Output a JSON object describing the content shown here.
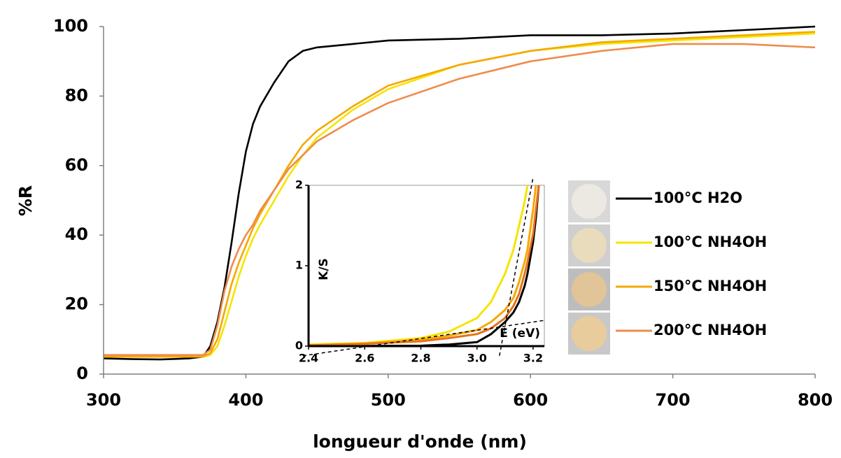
{
  "chart_data": [
    {
      "type": "line",
      "xlabel": "longueur d'onde (nm)",
      "ylabel": "%R",
      "x": [
        300,
        320,
        340,
        360,
        370,
        375,
        380,
        385,
        390,
        395,
        400,
        405,
        410,
        420,
        430,
        440,
        450,
        475,
        500,
        550,
        600,
        650,
        700,
        750,
        800
      ],
      "series": [
        {
          "name": "100°C H2O",
          "color": "#000000",
          "values": [
            4.5,
            4.3,
            4.2,
            4.5,
            5,
            8,
            15,
            25,
            38,
            52,
            64,
            72,
            77,
            84,
            90,
            93,
            94,
            95,
            96,
            96.5,
            97.5,
            97.5,
            98,
            99,
            100
          ]
        },
        {
          "name": "100°C NH4OH",
          "color": "#f5e400",
          "values": [
            5,
            5,
            5,
            5,
            5,
            5.5,
            8,
            14,
            21,
            28,
            34,
            39,
            43,
            50,
            57,
            63,
            68,
            76,
            82,
            89,
            93,
            95,
            96,
            97,
            98
          ]
        },
        {
          "name": "150°C NH4OH",
          "color": "#f5a800",
          "values": [
            5,
            5,
            5,
            5,
            5,
            6,
            10,
            18,
            26,
            32,
            37,
            42,
            46,
            53,
            60,
            66,
            70,
            77,
            83,
            89,
            93,
            95.5,
            96.5,
            97.5,
            98.5
          ]
        },
        {
          "name": "200°C NH4OH",
          "color": "#ee8c4c",
          "values": [
            5.5,
            5.5,
            5.5,
            5.5,
            5.5,
            7,
            14,
            24,
            31,
            36,
            40,
            43,
            47,
            53,
            59,
            63,
            67,
            73,
            78,
            85,
            90,
            93,
            95,
            95,
            94
          ]
        }
      ],
      "xlim": [
        300,
        800
      ],
      "xticks": [
        300,
        400,
        500,
        600,
        700,
        800
      ],
      "ylim": [
        0,
        100
      ],
      "yticks": [
        0,
        20,
        40,
        60,
        80,
        100
      ],
      "grid": false,
      "legend": "right"
    },
    {
      "type": "line",
      "xlabel": "E (eV)",
      "ylabel": "K/S",
      "x": [
        2.4,
        2.6,
        2.8,
        2.9,
        3.0,
        3.05,
        3.1,
        3.13,
        3.15,
        3.17,
        3.18,
        3.2,
        3.21,
        3.22
      ],
      "series": [
        {
          "color": "#000000",
          "values": [
            0,
            0.002,
            0.005,
            0.02,
            0.05,
            0.15,
            0.3,
            0.42,
            0.55,
            0.75,
            0.9,
            1.3,
            1.6,
            2.0
          ]
        },
        {
          "color": "#f5e400",
          "values": [
            0.02,
            0.04,
            0.1,
            0.18,
            0.35,
            0.55,
            0.9,
            1.2,
            1.5,
            1.8,
            2.0,
            null,
            null,
            null
          ]
        },
        {
          "color": "#f5a800",
          "values": [
            0.01,
            0.03,
            0.08,
            0.13,
            0.2,
            0.3,
            0.45,
            0.6,
            0.8,
            1.05,
            1.2,
            1.7,
            2.0,
            null
          ]
        },
        {
          "color": "#e8701a",
          "values": [
            0.01,
            0.03,
            0.06,
            0.1,
            0.15,
            0.22,
            0.35,
            0.5,
            0.65,
            0.9,
            1.05,
            1.4,
            1.7,
            2.0
          ]
        }
      ],
      "reference_lines": [
        {
          "x": [
            3.08,
            3.2
          ],
          "values": [
            -0.12,
            2.1
          ],
          "style": "dashed"
        },
        {
          "x": [
            2.38,
            3.24
          ],
          "values": [
            -0.12,
            0.32
          ],
          "style": "dashed"
        }
      ],
      "xlim": [
        2.4,
        3.24
      ],
      "xticks": [
        2.4,
        2.6,
        2.8,
        {
          "value": 3.0,
          "label": "3.0"
        },
        3.2
      ],
      "ylim": [
        0,
        2
      ],
      "yticks": [
        0,
        1,
        2
      ]
    }
  ]
}
